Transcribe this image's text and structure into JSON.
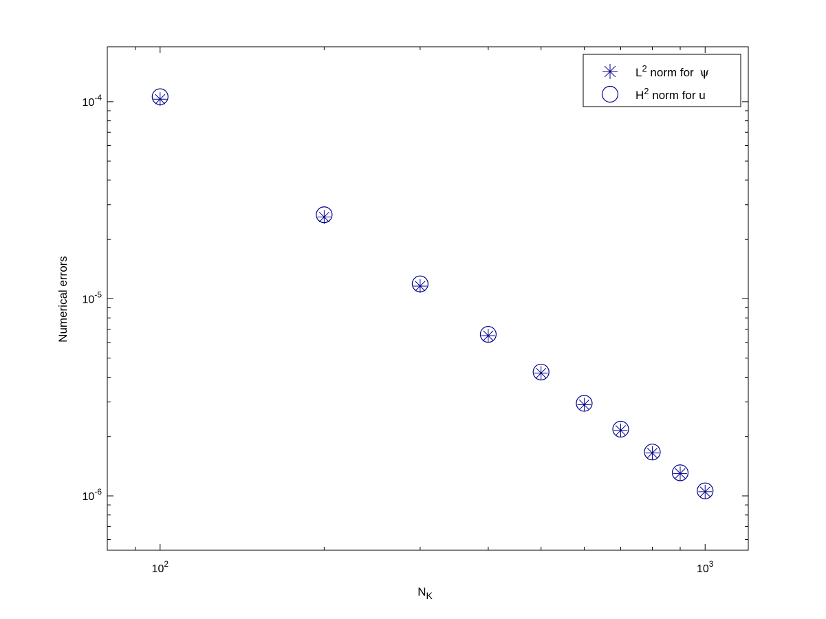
{
  "chart_data": {
    "type": "scatter",
    "title": "",
    "xlabel": {
      "base": "N",
      "subscript": "K"
    },
    "ylabel": "Numerical errors",
    "xscale": "log",
    "yscale": "log",
    "xlim": [
      80,
      1200
    ],
    "ylim": [
      5.3e-07,
      0.00019
    ],
    "x_ticks": [
      {
        "value": 100,
        "base": "10",
        "exp": "2"
      },
      {
        "value": 1000,
        "base": "10",
        "exp": "3"
      }
    ],
    "y_ticks": [
      {
        "value": 1e-06,
        "base": "10",
        "exp": "-6"
      },
      {
        "value": 1e-05,
        "base": "10",
        "exp": "-5"
      },
      {
        "value": 0.0001,
        "base": "10",
        "exp": "-4"
      }
    ],
    "grid": false,
    "legend_position": "top-right",
    "x": [
      100,
      200,
      300,
      400,
      500,
      600,
      700,
      800,
      900,
      1000
    ],
    "series": [
      {
        "name": {
          "base": "L",
          "sup": "2",
          "rest": " norm for ",
          "greek": "ψ"
        },
        "marker": "asterisk",
        "color": "#00008b",
        "values": [
          0.000103,
          2.6e-05,
          1.16e-05,
          6.5e-06,
          4.2e-06,
          2.9e-06,
          2.15e-06,
          1.65e-06,
          1.3e-06,
          1.05e-06
        ]
      },
      {
        "name": {
          "base": "H",
          "sup": "2",
          "rest": " norm for u"
        },
        "marker": "circle",
        "color": "#00008b",
        "values": [
          0.000106,
          2.67e-05,
          1.19e-05,
          6.6e-06,
          4.25e-06,
          2.95e-06,
          2.18e-06,
          1.67e-06,
          1.31e-06,
          1.06e-06
        ]
      }
    ]
  }
}
